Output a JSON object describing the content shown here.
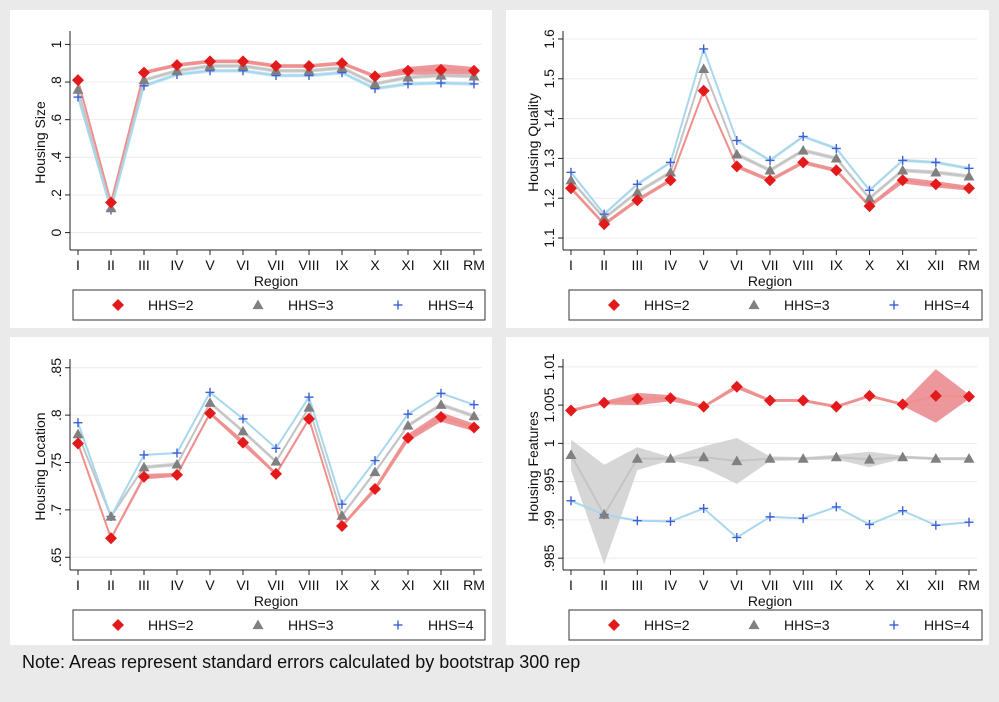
{
  "note": "Note: Areas represent standard errors calculated by bootstrap 300 rep",
  "colors": {
    "background": "#eaeaea",
    "panel": "#ffffff",
    "hhs2": "#e31a1c",
    "hhs3": "#808080",
    "hhs4": "#3d5fd8",
    "hhs2_line": "#f08f8c",
    "hhs3_line": "#c4c4c4",
    "hhs4_line": "#a8d7ee",
    "hhs2_band": "#e8858a",
    "hhs3_band": "#cfcfcf",
    "hhs4_band": "#bfe2f2"
  },
  "chart_data": [
    {
      "type": "line",
      "xlabel": "Region",
      "ylabel": "Housing Size",
      "categories": [
        "I",
        "II",
        "III",
        "IV",
        "V",
        "VI",
        "VII",
        "VIII",
        "IX",
        "X",
        "XI",
        "XII",
        "RM"
      ],
      "ylim": [
        -0.05,
        1.05
      ],
      "yticks": [
        0,
        0.2,
        0.4,
        0.6,
        0.8,
        1
      ],
      "yticklabels": [
        "0",
        ".2",
        ".4",
        ".6",
        ".8",
        "1"
      ],
      "grid": true,
      "legend": "bottom",
      "series": [
        {
          "name": "HHS=2",
          "marker": "diamond",
          "values": [
            0.81,
            0.16,
            0.85,
            0.89,
            0.91,
            0.91,
            0.885,
            0.885,
            0.9,
            0.83,
            0.86,
            0.865,
            0.86
          ],
          "se": [
            0.01,
            0.01,
            0.01,
            0.01,
            0.01,
            0.01,
            0.01,
            0.01,
            0.01,
            0.01,
            0.02,
            0.03,
            0.02
          ]
        },
        {
          "name": "HHS=3",
          "marker": "triangle",
          "values": [
            0.76,
            0.13,
            0.81,
            0.86,
            0.885,
            0.885,
            0.86,
            0.86,
            0.875,
            0.79,
            0.825,
            0.835,
            0.83
          ],
          "se": [
            0.01,
            0.01,
            0.01,
            0.01,
            0.01,
            0.01,
            0.01,
            0.01,
            0.01,
            0.01,
            0.01,
            0.01,
            0.01
          ]
        },
        {
          "name": "HHS=4",
          "marker": "plus",
          "values": [
            0.72,
            0.12,
            0.78,
            0.84,
            0.86,
            0.86,
            0.835,
            0.835,
            0.85,
            0.765,
            0.79,
            0.795,
            0.79
          ],
          "se": [
            0.01,
            0.01,
            0.01,
            0.01,
            0.01,
            0.01,
            0.01,
            0.01,
            0.01,
            0.01,
            0.01,
            0.01,
            0.01
          ]
        }
      ]
    },
    {
      "type": "line",
      "xlabel": "Region",
      "ylabel": "Housing Quality",
      "categories": [
        "I",
        "II",
        "III",
        "IV",
        "V",
        "VI",
        "VII",
        "VIII",
        "IX",
        "X",
        "XI",
        "XII",
        "RM"
      ],
      "ylim": [
        1.09,
        1.61
      ],
      "yticks": [
        1.1,
        1.2,
        1.3,
        1.4,
        1.5,
        1.6
      ],
      "yticklabels": [
        "1.1",
        "1.2",
        "1.3",
        "1.4",
        "1.5",
        "1.6"
      ],
      "grid": true,
      "legend": "bottom",
      "series": [
        {
          "name": "HHS=2",
          "marker": "diamond",
          "values": [
            1.225,
            1.135,
            1.195,
            1.245,
            1.47,
            1.28,
            1.245,
            1.29,
            1.27,
            1.18,
            1.245,
            1.235,
            1.225
          ],
          "se": [
            0.005,
            0.005,
            0.005,
            0.005,
            0.005,
            0.005,
            0.005,
            0.005,
            0.005,
            0.005,
            0.008,
            0.008,
            0.006
          ]
        },
        {
          "name": "HHS=3",
          "marker": "triangle",
          "values": [
            1.245,
            1.15,
            1.215,
            1.265,
            1.525,
            1.31,
            1.27,
            1.32,
            1.3,
            1.2,
            1.27,
            1.265,
            1.255
          ],
          "se": [
            0.005,
            0.005,
            0.005,
            0.005,
            0.005,
            0.005,
            0.005,
            0.005,
            0.005,
            0.005,
            0.005,
            0.005,
            0.005
          ]
        },
        {
          "name": "HHS=4",
          "marker": "plus",
          "values": [
            1.265,
            1.16,
            1.235,
            1.29,
            1.575,
            1.345,
            1.295,
            1.355,
            1.325,
            1.22,
            1.295,
            1.29,
            1.275
          ],
          "se": [
            0.004,
            0.004,
            0.004,
            0.004,
            0.004,
            0.004,
            0.004,
            0.004,
            0.004,
            0.004,
            0.004,
            0.004,
            0.004
          ]
        }
      ]
    },
    {
      "type": "line",
      "xlabel": "Region",
      "ylabel": "Housing Location",
      "categories": [
        "I",
        "II",
        "III",
        "IV",
        "V",
        "VI",
        "VII",
        "VIII",
        "IX",
        "X",
        "XI",
        "XII",
        "RM"
      ],
      "ylim": [
        0.645,
        0.855
      ],
      "yticks": [
        0.65,
        0.7,
        0.75,
        0.8,
        0.85
      ],
      "yticklabels": [
        ".65",
        ".7",
        ".75",
        ".8",
        ".85"
      ],
      "grid": true,
      "legend": "bottom",
      "series": [
        {
          "name": "HHS=2",
          "marker": "diamond",
          "values": [
            0.77,
            0.67,
            0.735,
            0.737,
            0.802,
            0.771,
            0.738,
            0.796,
            0.683,
            0.722,
            0.776,
            0.798,
            0.787
          ],
          "se": [
            0.002,
            0.002,
            0.003,
            0.002,
            0.002,
            0.003,
            0.002,
            0.002,
            0.002,
            0.003,
            0.004,
            0.005,
            0.004
          ]
        },
        {
          "name": "HHS=3",
          "marker": "triangle",
          "values": [
            0.78,
            0.693,
            0.745,
            0.748,
            0.813,
            0.783,
            0.751,
            0.808,
            0.694,
            0.74,
            0.789,
            0.811,
            0.799
          ],
          "se": [
            0.002,
            0.002,
            0.002,
            0.002,
            0.002,
            0.002,
            0.002,
            0.002,
            0.002,
            0.002,
            0.002,
            0.002,
            0.002
          ]
        },
        {
          "name": "HHS=4",
          "marker": "plus",
          "values": [
            0.792,
            0.693,
            0.758,
            0.76,
            0.824,
            0.796,
            0.765,
            0.819,
            0.706,
            0.752,
            0.801,
            0.823,
            0.811
          ],
          "se": [
            0.001,
            0.001,
            0.001,
            0.001,
            0.001,
            0.001,
            0.001,
            0.001,
            0.001,
            0.001,
            0.001,
            0.001,
            0.001
          ]
        }
      ]
    },
    {
      "type": "line",
      "xlabel": "Region",
      "ylabel": "Housing Features",
      "categories": [
        "I",
        "II",
        "III",
        "IV",
        "V",
        "VI",
        "VII",
        "VIII",
        "IX",
        "X",
        "XI",
        "XII",
        "RM"
      ],
      "ylim": [
        0.9845,
        1.0105
      ],
      "yticks": [
        0.985,
        0.99,
        0.995,
        1,
        1.005,
        1.01
      ],
      "yticklabels": [
        ".985",
        ".99",
        ".995",
        "1",
        "1.005",
        "1.01"
      ],
      "grid": true,
      "legend": "bottom",
      "series": [
        {
          "name": "HHS=2",
          "marker": "diamond",
          "values": [
            1.0043,
            1.0053,
            1.0058,
            1.0059,
            1.0048,
            1.0074,
            1.0056,
            1.0056,
            1.0048,
            1.0062,
            1.0051,
            1.0062,
            1.0061
          ],
          "se": [
            0.0002,
            0.0002,
            0.0008,
            0.0004,
            0.0002,
            0.0003,
            0.0002,
            0.0002,
            0.0002,
            0.0002,
            0.0002,
            0.0035,
            0.0003
          ]
        },
        {
          "name": "HHS=3",
          "marker": "triangle",
          "values": [
            0.9985,
            0.9907,
            0.998,
            0.998,
            0.9982,
            0.9977,
            0.998,
            0.998,
            0.9982,
            0.9979,
            0.9982,
            0.998,
            0.998
          ],
          "se": [
            0.002,
            0.0065,
            0.0015,
            0.0002,
            0.0014,
            0.003,
            0.0003,
            0.0002,
            0.0003,
            0.001,
            0.0002,
            0.0002,
            0.0002
          ]
        },
        {
          "name": "HHS=4",
          "marker": "plus",
          "values": [
            0.9925,
            0.9907,
            0.9899,
            0.9898,
            0.9915,
            0.9877,
            0.9904,
            0.9902,
            0.9917,
            0.9894,
            0.9912,
            0.9893,
            0.9897
          ],
          "se": [
            0.0001,
            0.0001,
            0.0001,
            0.0001,
            0.0001,
            0.0001,
            0.0001,
            0.0001,
            0.0001,
            0.0001,
            0.0001,
            0.0001,
            0.0001
          ]
        }
      ]
    }
  ]
}
